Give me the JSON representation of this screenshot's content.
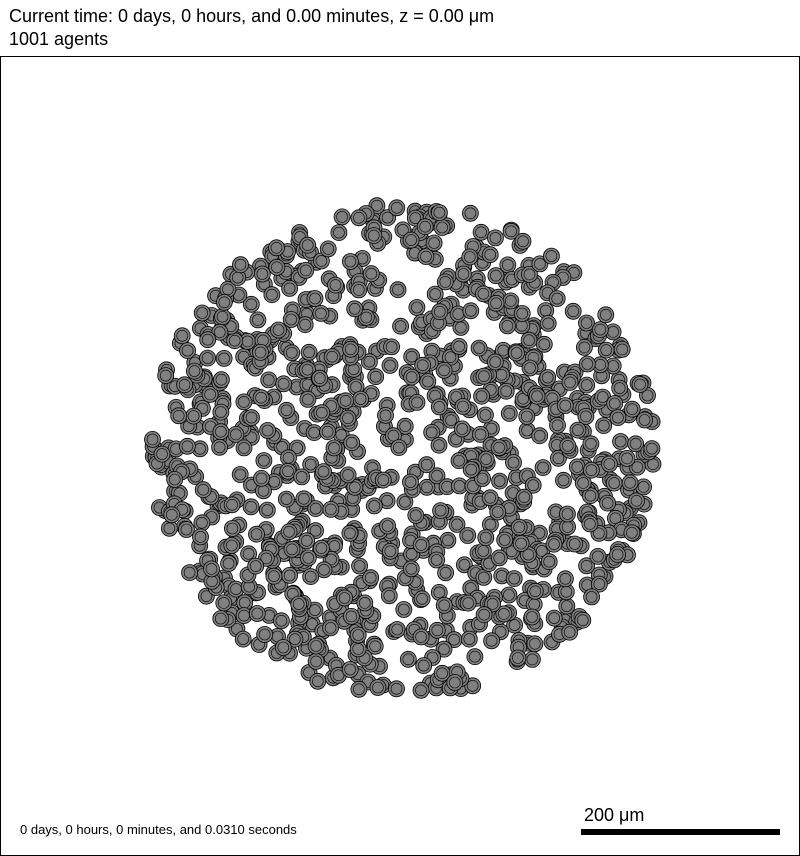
{
  "header": {
    "time_line": "Current time: 0 days, 0 hours, and 0.00 minutes, z = 0.00 μm",
    "agents_line": "1001 agents"
  },
  "simulation": {
    "agent_count": 1001,
    "cell_fill": "#808080",
    "cell_stroke": "#000000",
    "background": "#ffffff"
  },
  "footer": {
    "elapsed_text": "0 days, 0 hours, 0 minutes, and 0.0310 seconds",
    "scale_label": "200 μm"
  }
}
